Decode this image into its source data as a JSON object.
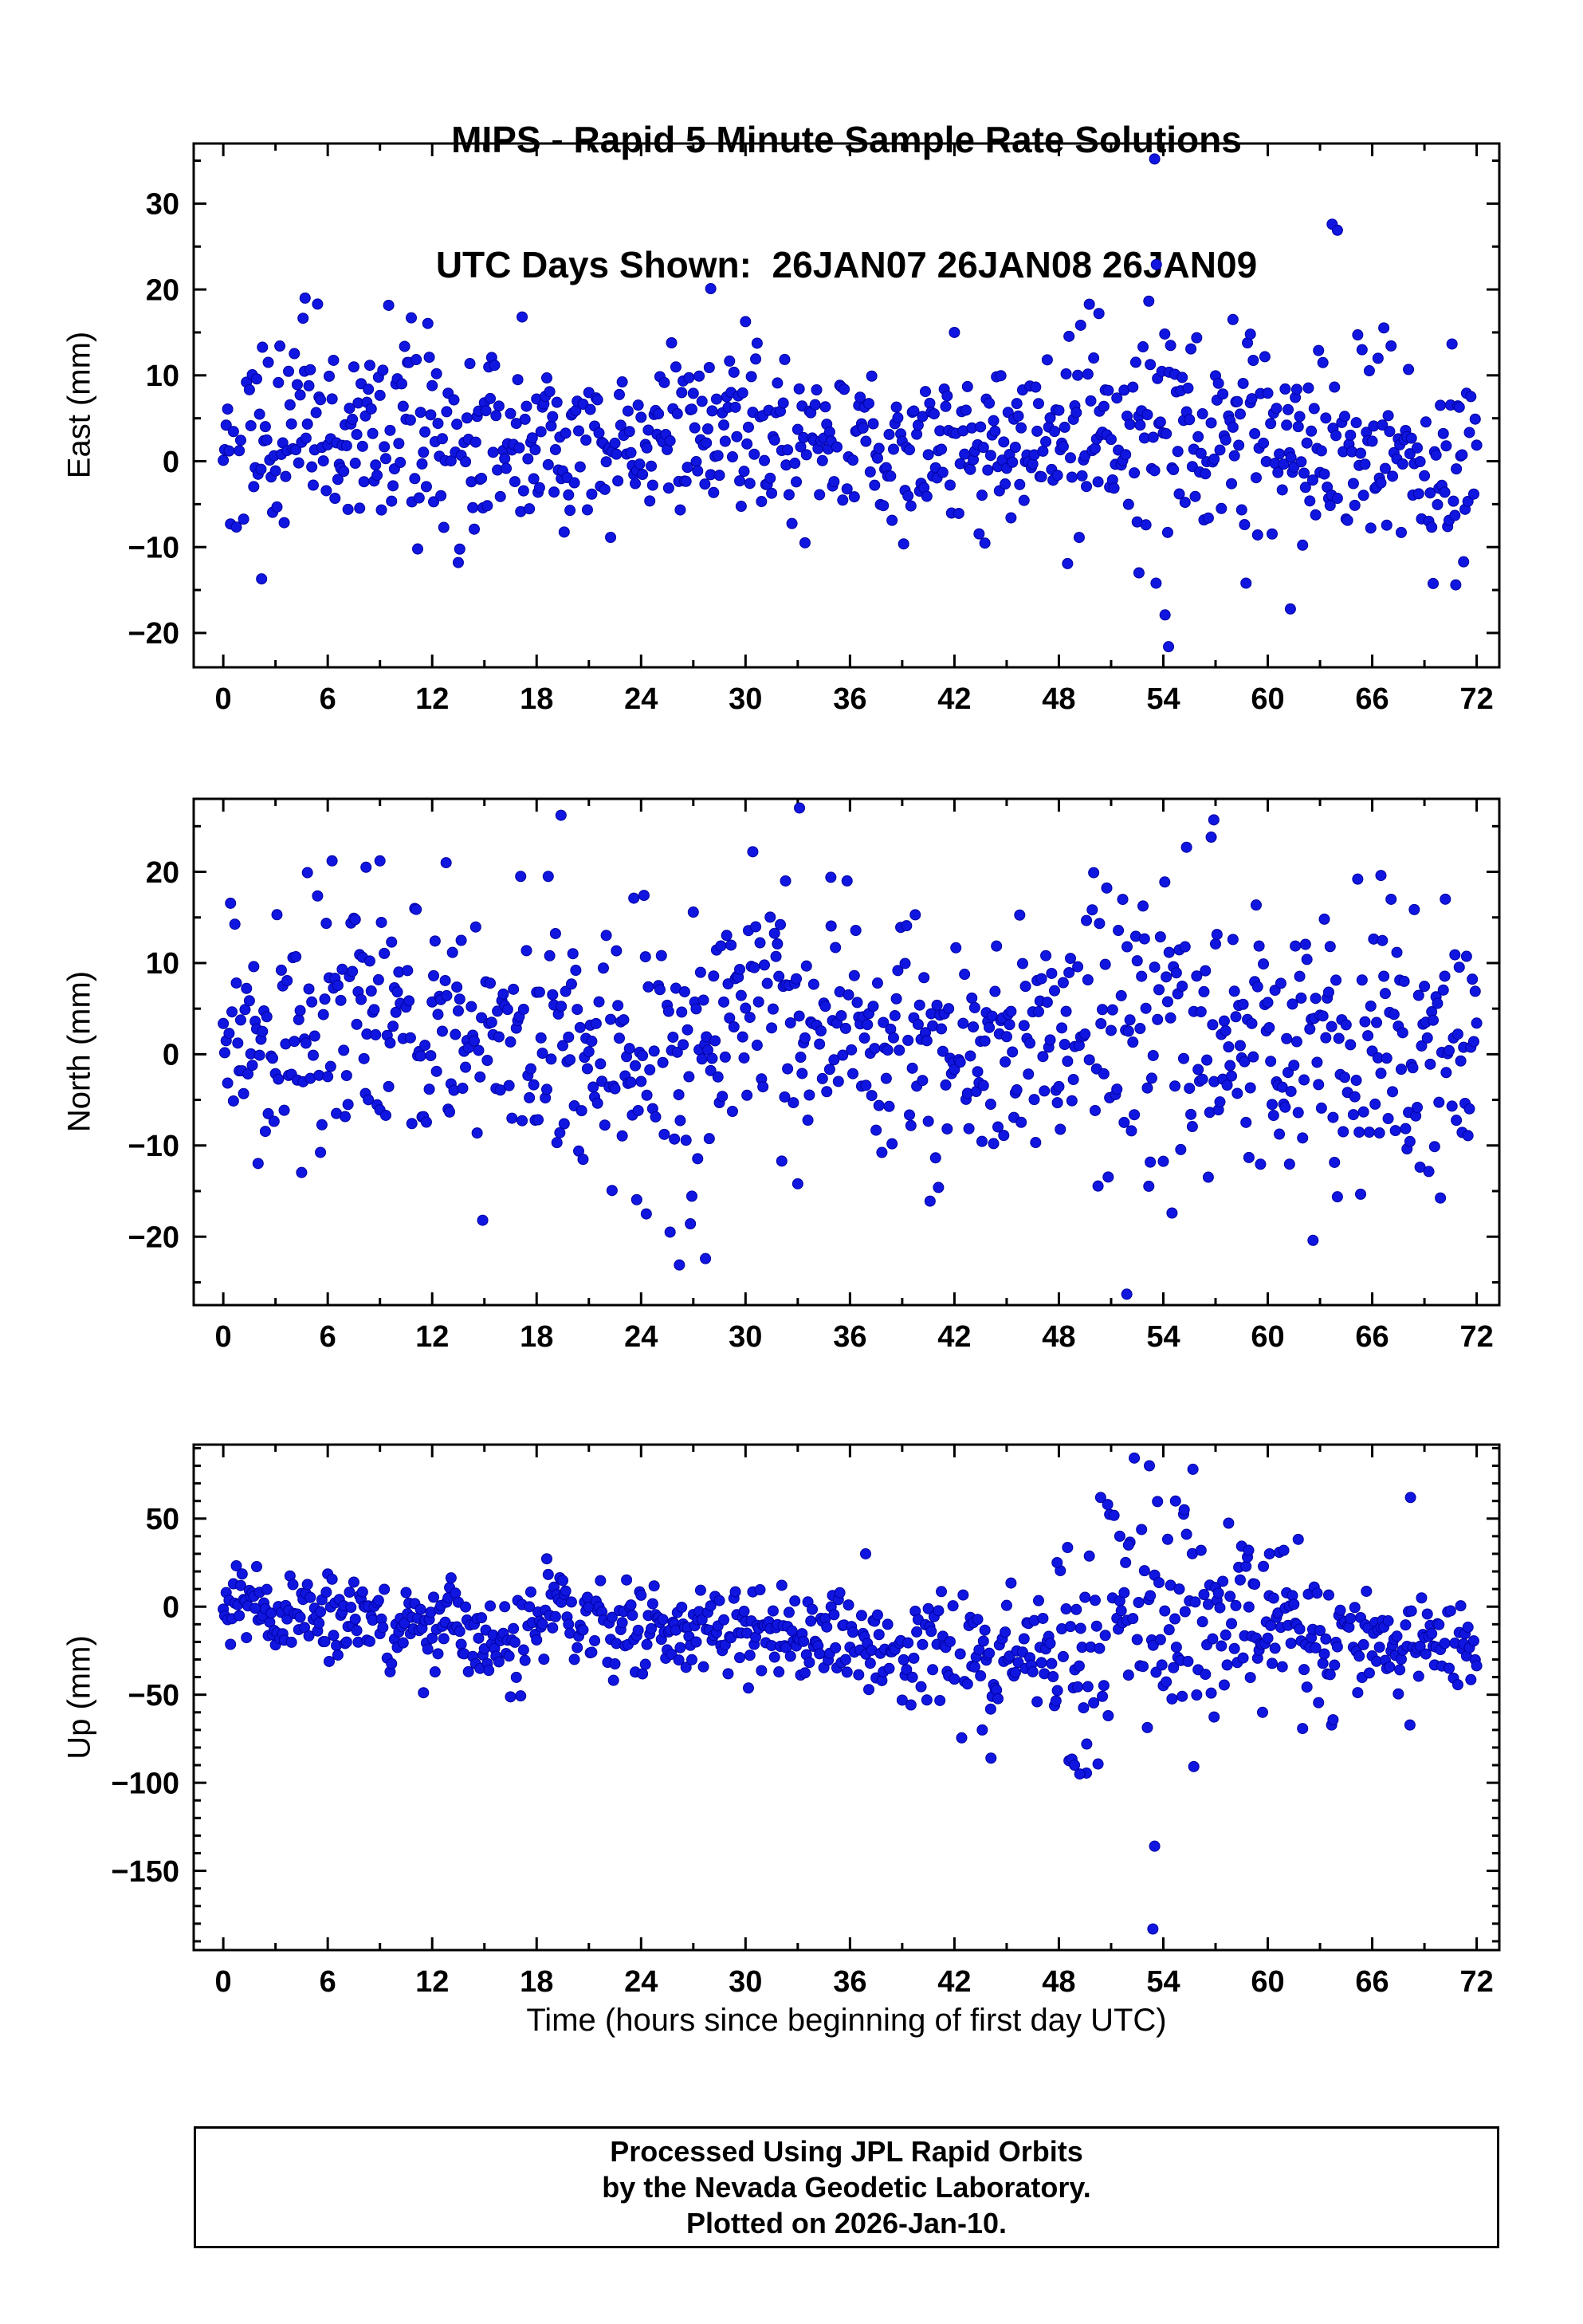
{
  "footer": {
    "line1": "Processed Using JPL Rapid Orbits",
    "line2": "by the Nevada Geodetic Laboratory.",
    "line3": "Plotted on 2026-Jan-10."
  },
  "point_color": "#1016e0",
  "point_edge_color": "#0000a0",
  "chart_data": {
    "type": "scatter",
    "title_line1": "MIPS - Rapid 5 Minute Sample Rate Solutions",
    "title_line2": "UTC Days Shown:  26JAN07 26JAN08 26JAN09",
    "xlabel": "Time (hours since beginning of first day UTC)",
    "x_unit": "hours",
    "xlim": [
      -1.7,
      73.3
    ],
    "xticks": [
      0,
      6,
      12,
      18,
      24,
      30,
      36,
      42,
      48,
      54,
      60,
      66,
      72
    ],
    "x_minor_step": 3,
    "sample_interval_hours": 0.0833333,
    "grid": false,
    "legend": false,
    "panels": [
      {
        "name": "east",
        "ylabel": "East (mm)",
        "ylim": [
          -24,
          37
        ],
        "yticks": [
          30,
          20,
          10,
          0,
          -10,
          -20
        ],
        "y_minor_step": 5,
        "seed": 101,
        "dropout": 0.07,
        "segments": [
          {
            "t0": 0,
            "t1": 12,
            "mean": 4,
            "std": 5.5
          },
          {
            "t0": 12,
            "t1": 24,
            "mean": 2.5,
            "std": 5.5
          },
          {
            "t0": 24,
            "t1": 36,
            "mean": 3.5,
            "std": 5
          },
          {
            "t0": 36,
            "t1": 48,
            "mean": 2,
            "std": 5
          },
          {
            "t0": 48,
            "t1": 60,
            "mean": 4,
            "std": 7
          },
          {
            "t0": 60,
            "t1": 72,
            "mean": 0.5,
            "std": 6
          }
        ],
        "outliers": [
          [
            53.5,
            35.2
          ],
          [
            53.6,
            22.9
          ],
          [
            63.7,
            27.6
          ],
          [
            64.0,
            26.9
          ],
          [
            28.0,
            20.1
          ],
          [
            4.7,
            19.0
          ],
          [
            10.8,
            16.7
          ],
          [
            50.3,
            17.2
          ],
          [
            58.0,
            16.5
          ],
          [
            59.0,
            14.8
          ],
          [
            54.3,
            -21.6
          ],
          [
            54.1,
            -17.9
          ],
          [
            61.3,
            -17.2
          ],
          [
            70.8,
            -14.4
          ],
          [
            2.2,
            -13.7
          ],
          [
            52.6,
            -13.0
          ]
        ]
      },
      {
        "name": "north",
        "ylabel": "North (mm)",
        "ylim": [
          -27.5,
          28
        ],
        "yticks": [
          20,
          10,
          0,
          -10,
          -20
        ],
        "y_minor_step": 5,
        "seed": 202,
        "dropout": 0.07,
        "segments": [
          {
            "t0": 0,
            "t1": 16,
            "mean": 3,
            "std": 7
          },
          {
            "t0": 16,
            "t1": 28,
            "mean": 0,
            "std": 7.5
          },
          {
            "t0": 28,
            "t1": 36,
            "mean": 4,
            "std": 7
          },
          {
            "t0": 36,
            "t1": 48,
            "mean": 1,
            "std": 6
          },
          {
            "t0": 48,
            "t1": 60,
            "mean": 3,
            "std": 8
          },
          {
            "t0": 60,
            "t1": 72,
            "mean": 1,
            "std": 7
          }
        ],
        "outliers": [
          [
            19.4,
            26.2
          ],
          [
            33.1,
            27.0
          ],
          [
            56.9,
            25.7
          ],
          [
            8.2,
            20.5
          ],
          [
            9.0,
            21.2
          ],
          [
            12.8,
            21.0
          ],
          [
            34.9,
            19.4
          ],
          [
            32.3,
            19.0
          ],
          [
            66.5,
            19.6
          ],
          [
            70.2,
            17.0
          ],
          [
            51.9,
            -26.3
          ],
          [
            26.2,
            -23.1
          ],
          [
            27.7,
            -22.4
          ],
          [
            14.9,
            -18.2
          ],
          [
            24.3,
            -17.5
          ],
          [
            40.6,
            -16.1
          ],
          [
            62.6,
            -20.4
          ]
        ]
      },
      {
        "name": "up",
        "ylabel": "Up (mm)",
        "ylim": [
          -195,
          92
        ],
        "yticks": [
          50,
          0,
          -50,
          -100,
          -150
        ],
        "y_minor_step": 10,
        "seed": 303,
        "dropout": 0.07,
        "segments": [
          {
            "t0": 0,
            "t1": 2,
            "mean": 2,
            "std": 9
          },
          {
            "t0": 2,
            "t1": 9,
            "mean": -4,
            "std": 12
          },
          {
            "t0": 9,
            "t1": 18,
            "mean": -16,
            "std": 14
          },
          {
            "t0": 18,
            "t1": 21,
            "mean": -5,
            "std": 15
          },
          {
            "t0": 21,
            "t1": 24,
            "mean": -10,
            "std": 14
          },
          {
            "t0": 24,
            "t1": 33,
            "mean": -15,
            "std": 12
          },
          {
            "t0": 33,
            "t1": 42,
            "mean": -22,
            "std": 13
          },
          {
            "t0": 42,
            "t1": 48,
            "mean": -30,
            "std": 18
          },
          {
            "t0": 48,
            "t1": 51,
            "mean": -25,
            "std": 38
          },
          {
            "t0": 51,
            "t1": 54,
            "mean": 5,
            "std": 32
          },
          {
            "t0": 54,
            "t1": 57,
            "mean": -5,
            "std": 33
          },
          {
            "t0": 57,
            "t1": 60,
            "mean": -8,
            "std": 25
          },
          {
            "t0": 60,
            "t1": 63,
            "mean": -12,
            "std": 22
          },
          {
            "t0": 63,
            "t1": 69,
            "mean": -23,
            "std": 17
          },
          {
            "t0": 69,
            "t1": 72,
            "mean": -22,
            "std": 15
          }
        ],
        "outliers": [
          [
            53.2,
            80
          ],
          [
            55.7,
            78
          ],
          [
            50.4,
            62
          ],
          [
            50.8,
            58
          ],
          [
            54.7,
            60
          ],
          [
            55.2,
            55
          ],
          [
            68.2,
            62
          ],
          [
            51.5,
            40
          ],
          [
            52.0,
            35
          ],
          [
            58.9,
            32
          ],
          [
            60.1,
            30
          ],
          [
            36.9,
            30
          ],
          [
            47.9,
            25
          ],
          [
            53.4,
            -183
          ],
          [
            53.5,
            -136
          ],
          [
            49.2,
            -95
          ],
          [
            48.9,
            -90
          ],
          [
            49.6,
            -78
          ],
          [
            59.7,
            -60
          ],
          [
            44.1,
            -86
          ],
          [
            43.6,
            -70
          ]
        ]
      }
    ]
  }
}
